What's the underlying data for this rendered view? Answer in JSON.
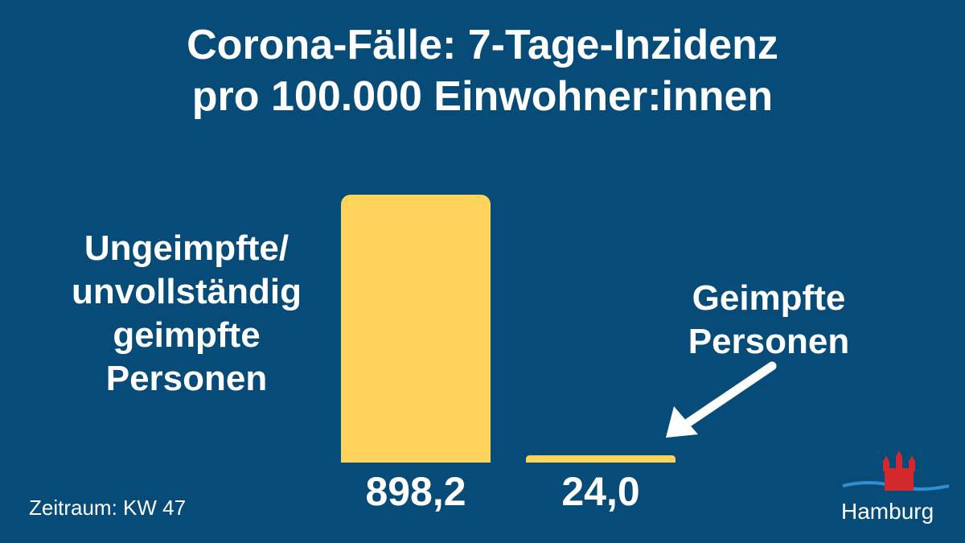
{
  "chart_data": {
    "type": "bar",
    "title": "Corona-Fälle: 7-Tage-Inzidenz",
    "subtitle": "pro 100.000 Einwohner:innen",
    "categories": [
      "Ungeimpfte/ unvollständig geimpfte Personen",
      "Geimpfte Personen"
    ],
    "values": [
      898.2,
      24.0
    ],
    "value_labels": [
      "898,2",
      "24,0"
    ],
    "color": "#fdd35c",
    "footnote": "Zeitraum: KW 47",
    "logo": "Hamburg"
  }
}
